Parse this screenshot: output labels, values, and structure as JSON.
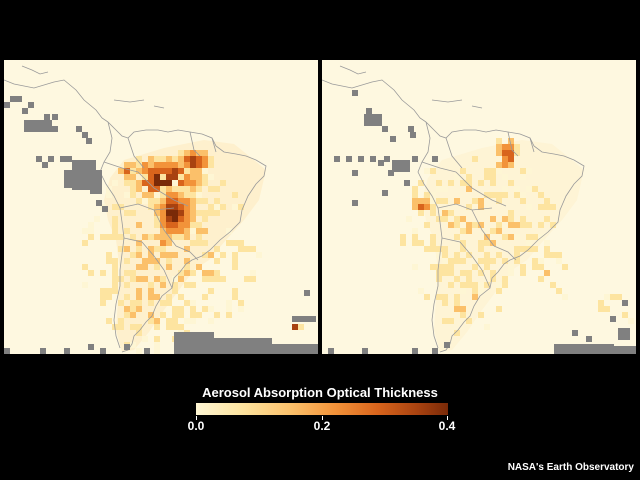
{
  "legend": {
    "title": "Aerosol Absorption Optical Thickness",
    "min": 0.0,
    "max": 0.4,
    "ticks": [
      {
        "value": 0.0,
        "label": "0.0"
      },
      {
        "value": 0.2,
        "label": "0.2"
      },
      {
        "value": 0.4,
        "label": "0.4"
      }
    ],
    "colors": [
      "#fef6d4",
      "#fde4a0",
      "#fbc06a",
      "#f2933a",
      "#d8641c",
      "#a84210",
      "#7a2a08"
    ]
  },
  "no_data_color": "#808080",
  "credit": "NASA's Earth Observatory",
  "maps": [
    {
      "name": "left-map",
      "description_level": "high-smoke"
    },
    {
      "name": "right-map",
      "description_level": "low-smoke"
    }
  ]
}
